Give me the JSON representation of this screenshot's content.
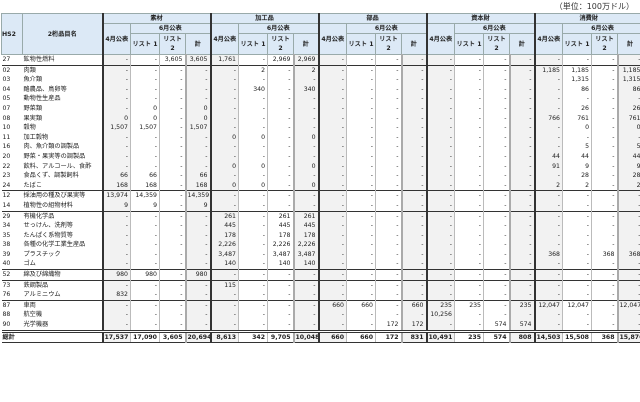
{
  "unit_label": "（単位：100万ドル）",
  "header": {
    "hs2": "HS2",
    "name": "2桁品目名",
    "groups": [
      "素材",
      "加工品",
      "部品",
      "資本財",
      "消費財"
    ],
    "april": "4月公表",
    "june": "6月公表",
    "list1": "リスト 1",
    "list2": "リスト 2",
    "total": "計"
  },
  "colors": {
    "header_bg": "#dce9f6",
    "shade": "#f2f2f2"
  },
  "rows": [
    {
      "code": "27",
      "name": "鉱物性燃料",
      "sep": "main",
      "cells": [
        "-",
        "-",
        "3,605",
        "3,605",
        "1,761",
        "-",
        "2,969",
        "2,969",
        "-",
        "-",
        "-",
        "-",
        "-",
        "-",
        "-",
        "-",
        "-",
        "-",
        "-",
        "-"
      ]
    },
    {
      "code": "02",
      "name": "肉類",
      "sep": "main",
      "cells": [
        "-",
        "-",
        "-",
        "-",
        "-",
        "2",
        "-",
        "2",
        "-",
        "-",
        "-",
        "-",
        "-",
        "-",
        "-",
        "-",
        "1,185",
        "1,185",
        "-",
        "1,185"
      ]
    },
    {
      "code": "03",
      "name": "魚介類",
      "cells": [
        "-",
        "-",
        "-",
        "-",
        "-",
        "-",
        "-",
        "-",
        "-",
        "-",
        "-",
        "-",
        "-",
        "-",
        "-",
        "-",
        "-",
        "1,315",
        "-",
        "1,315"
      ]
    },
    {
      "code": "04",
      "name": "酪農品、鳥卵等",
      "cells": [
        "-",
        "-",
        "-",
        "-",
        "-",
        "340",
        "-",
        "340",
        "-",
        "-",
        "-",
        "-",
        "-",
        "-",
        "-",
        "-",
        "-",
        "86",
        "-",
        "86"
      ]
    },
    {
      "code": "05",
      "name": "動物性生産品",
      "cells": [
        "-",
        "-",
        "-",
        "-",
        "-",
        "-",
        "-",
        "-",
        "-",
        "-",
        "-",
        "-",
        "-",
        "-",
        "-",
        "-",
        "-",
        "-",
        "-",
        "-"
      ]
    },
    {
      "code": "07",
      "name": "野菜類",
      "cells": [
        "-",
        "0",
        "-",
        "0",
        "-",
        "-",
        "-",
        "-",
        "-",
        "-",
        "-",
        "-",
        "-",
        "-",
        "-",
        "-",
        "-",
        "26",
        "-",
        "26"
      ]
    },
    {
      "code": "08",
      "name": "果実類",
      "cells": [
        "0",
        "0",
        "-",
        "0",
        "-",
        "-",
        "-",
        "-",
        "-",
        "-",
        "-",
        "-",
        "-",
        "-",
        "-",
        "-",
        "766",
        "761",
        "-",
        "761"
      ]
    },
    {
      "code": "10",
      "name": "穀物",
      "cells": [
        "1,507",
        "1,507",
        "-",
        "1,507",
        "-",
        "-",
        "-",
        "-",
        "-",
        "-",
        "-",
        "-",
        "-",
        "-",
        "-",
        "-",
        "-",
        "0",
        "-",
        "0"
      ]
    },
    {
      "code": "11",
      "name": "加工穀物",
      "cells": [
        "-",
        "-",
        "-",
        "-",
        "0",
        "0",
        "-",
        "0",
        "-",
        "-",
        "-",
        "-",
        "-",
        "-",
        "-",
        "-",
        "-",
        "-",
        "-",
        "-"
      ]
    },
    {
      "code": "16",
      "name": "肉、魚介類の調製品",
      "cells": [
        "-",
        "-",
        "-",
        "-",
        "-",
        "-",
        "-",
        "-",
        "-",
        "-",
        "-",
        "-",
        "-",
        "-",
        "-",
        "-",
        "-",
        "5",
        "-",
        "5"
      ]
    },
    {
      "code": "20",
      "name": "野菜・果実等の調製品",
      "cells": [
        "-",
        "-",
        "-",
        "-",
        "-",
        "-",
        "-",
        "-",
        "-",
        "-",
        "-",
        "-",
        "-",
        "-",
        "-",
        "-",
        "44",
        "44",
        "-",
        "44"
      ]
    },
    {
      "code": "22",
      "name": "飲料、アルコール、食酢",
      "cells": [
        "-",
        "-",
        "-",
        "-",
        "0",
        "0",
        "-",
        "0",
        "-",
        "-",
        "-",
        "-",
        "-",
        "-",
        "-",
        "-",
        "91",
        "9",
        "-",
        "9"
      ]
    },
    {
      "code": "23",
      "name": "食品くず、調製飼料",
      "cells": [
        "66",
        "66",
        "-",
        "66",
        "-",
        "-",
        "-",
        "-",
        "-",
        "-",
        "-",
        "-",
        "-",
        "-",
        "-",
        "-",
        "-",
        "28",
        "-",
        "28"
      ]
    },
    {
      "code": "24",
      "name": "たばこ",
      "cells": [
        "168",
        "168",
        "-",
        "168",
        "0",
        "0",
        "-",
        "0",
        "-",
        "-",
        "-",
        "-",
        "-",
        "-",
        "-",
        "-",
        "2",
        "2",
        "-",
        "2"
      ]
    },
    {
      "code": "12",
      "name": "採油用の種及び果実等",
      "sep": "main",
      "cells": [
        "13,974",
        "14,359",
        "-",
        "14,359",
        "-",
        "-",
        "-",
        "-",
        "-",
        "-",
        "-",
        "-",
        "-",
        "-",
        "-",
        "-",
        "-",
        "-",
        "-",
        "-"
      ]
    },
    {
      "code": "14",
      "name": "植物性の組物材料",
      "cells": [
        "9",
        "9",
        "-",
        "9",
        "-",
        "-",
        "-",
        "-",
        "-",
        "-",
        "-",
        "-",
        "-",
        "-",
        "-",
        "-",
        "-",
        "-",
        "-",
        "-"
      ]
    },
    {
      "code": "29",
      "name": "有機化学品",
      "sep": "main",
      "cells": [
        "-",
        "-",
        "-",
        "-",
        "261",
        "-",
        "261",
        "261",
        "-",
        "-",
        "-",
        "-",
        "-",
        "-",
        "-",
        "-",
        "-",
        "-",
        "-",
        "-"
      ]
    },
    {
      "code": "34",
      "name": "せっけん、洗剤等",
      "cells": [
        "-",
        "-",
        "-",
        "-",
        "445",
        "-",
        "445",
        "445",
        "-",
        "-",
        "-",
        "-",
        "-",
        "-",
        "-",
        "-",
        "-",
        "-",
        "-",
        "-"
      ]
    },
    {
      "code": "35",
      "name": "たんぱく系物質等",
      "cells": [
        "-",
        "-",
        "-",
        "-",
        "178",
        "-",
        "178",
        "178",
        "-",
        "-",
        "-",
        "-",
        "-",
        "-",
        "-",
        "-",
        "-",
        "-",
        "-",
        "-"
      ]
    },
    {
      "code": "38",
      "name": "各種の化学工業生産品",
      "cells": [
        "-",
        "-",
        "-",
        "-",
        "2,226",
        "-",
        "2,226",
        "2,226",
        "-",
        "-",
        "-",
        "-",
        "-",
        "-",
        "-",
        "-",
        "-",
        "-",
        "-",
        "-"
      ]
    },
    {
      "code": "39",
      "name": "プラスチック",
      "cells": [
        "-",
        "-",
        "-",
        "-",
        "3,487",
        "-",
        "3,487",
        "3,487",
        "-",
        "-",
        "-",
        "-",
        "-",
        "-",
        "-",
        "-",
        "368",
        "-",
        "368",
        "368"
      ]
    },
    {
      "code": "40",
      "name": "ゴム",
      "cells": [
        "-",
        "-",
        "-",
        "-",
        "140",
        "-",
        "140",
        "140",
        "-",
        "-",
        "-",
        "-",
        "-",
        "-",
        "-",
        "-",
        "-",
        "-",
        "-",
        "-"
      ]
    },
    {
      "code": "52",
      "name": "綿及び綿織物",
      "sep": "main",
      "cells": [
        "980",
        "980",
        "-",
        "980",
        "-",
        "-",
        "-",
        "-",
        "-",
        "-",
        "-",
        "-",
        "-",
        "-",
        "-",
        "-",
        "-",
        "-",
        "-",
        "-"
      ]
    },
    {
      "code": "73",
      "name": "鉄鋼製品",
      "sep": "main",
      "cells": [
        "-",
        "-",
        "-",
        "-",
        "115",
        "-",
        "-",
        "-",
        "-",
        "-",
        "-",
        "-",
        "-",
        "-",
        "-",
        "-",
        "-",
        "-",
        "-",
        "-"
      ]
    },
    {
      "code": "76",
      "name": "アルミニウム",
      "cells": [
        "832",
        "-",
        "-",
        "-",
        "-",
        "-",
        "-",
        "-",
        "-",
        "-",
        "-",
        "-",
        "-",
        "-",
        "-",
        "-",
        "-",
        "-",
        "-",
        "-"
      ]
    },
    {
      "code": "87",
      "name": "車両",
      "sep": "main",
      "cells": [
        "-",
        "-",
        "-",
        "-",
        "-",
        "-",
        "-",
        "-",
        "660",
        "660",
        "-",
        "660",
        "235",
        "235",
        "-",
        "235",
        "12,047",
        "12,047",
        "-",
        "12,047"
      ]
    },
    {
      "code": "88",
      "name": "航空機",
      "cells": [
        "-",
        "-",
        "-",
        "-",
        "-",
        "-",
        "-",
        "-",
        "-",
        "-",
        "-",
        "-",
        "10,256",
        "-",
        "-",
        "-",
        "-",
        "-",
        "-",
        "-"
      ]
    },
    {
      "code": "90",
      "name": "光学機器",
      "cells": [
        "-",
        "-",
        "-",
        "-",
        "-",
        "-",
        "-",
        "-",
        "-",
        "-",
        "172",
        "172",
        "-",
        "-",
        "574",
        "574",
        "-",
        "-",
        "-",
        "-"
      ]
    }
  ],
  "total": {
    "label": "総計",
    "cells": [
      "17,537",
      "17,090",
      "3,605",
      "20,694",
      "8,613",
      "342",
      "9,705",
      "10,048",
      "660",
      "660",
      "172",
      "831",
      "10,491",
      "235",
      "574",
      "808",
      "14,503",
      "15,508",
      "368",
      "15,876"
    ]
  }
}
